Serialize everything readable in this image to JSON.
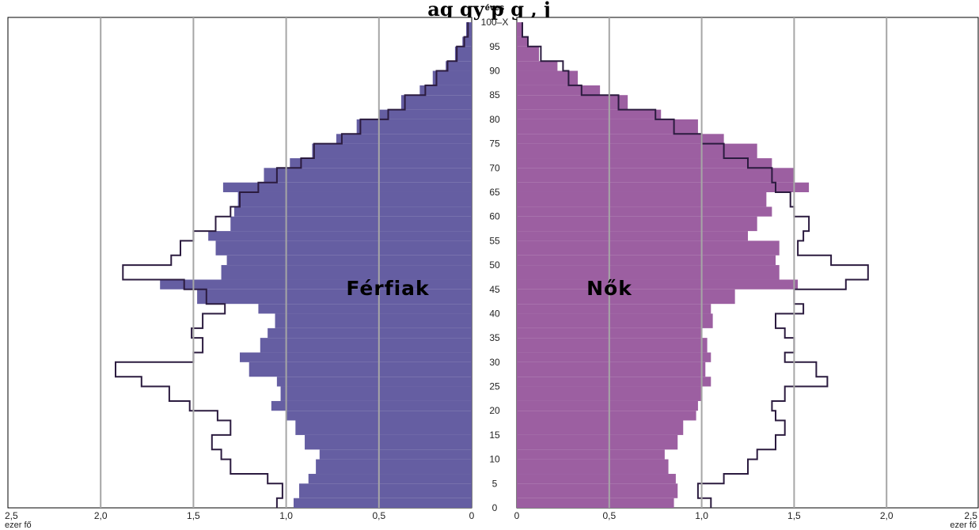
{
  "chart_data": {
    "type": "bar",
    "title": "ag gy p g , j",
    "age_axis_label": "éves",
    "age_ticks": [
      "0",
      "5",
      "10",
      "15",
      "20",
      "25",
      "30",
      "35",
      "40",
      "45",
      "50",
      "55",
      "60",
      "65",
      "70",
      "75",
      "80",
      "85",
      "90",
      "95",
      "100–X"
    ],
    "x_ticks_men": [
      "2,5",
      "2,0",
      "1,5",
      "1,0",
      "0,5",
      "0"
    ],
    "x_ticks_women": [
      "0",
      "0,5",
      "1,0",
      "1,5",
      "2,0",
      "2,5"
    ],
    "x_unit": "ezer fő",
    "xlim": [
      0,
      2.5
    ],
    "grid": true,
    "colors": {
      "men": "#655ea2",
      "women": "#9c5fa1",
      "outline": "#2b1b3f"
    },
    "series": [
      {
        "name": "Férfiak",
        "ages": [
          0,
          2,
          5,
          7,
          10,
          12,
          15,
          18,
          20,
          22,
          25,
          27,
          30,
          32,
          35,
          37,
          40,
          42,
          45,
          47,
          50,
          52,
          55,
          57,
          60,
          62,
          65,
          67,
          70,
          72,
          75,
          77,
          80,
          82,
          85,
          87,
          90,
          92,
          95,
          97,
          100
        ],
        "filled": [
          0.96,
          0.93,
          0.88,
          0.84,
          0.82,
          0.9,
          0.95,
          1.0,
          1.08,
          1.03,
          1.05,
          1.2,
          1.25,
          1.14,
          1.1,
          1.06,
          1.15,
          1.48,
          1.68,
          1.35,
          1.32,
          1.38,
          1.42,
          1.3,
          1.28,
          1.26,
          1.34,
          1.12,
          0.98,
          0.86,
          0.73,
          0.62,
          0.5,
          0.38,
          0.28,
          0.21,
          0.14,
          0.09,
          0.05,
          0.03,
          0.01
        ],
        "outline": [
          1.05,
          1.02,
          1.1,
          1.3,
          1.35,
          1.4,
          1.3,
          1.37,
          1.52,
          1.63,
          1.78,
          1.92,
          1.5,
          1.45,
          1.51,
          1.45,
          1.33,
          1.43,
          1.55,
          1.88,
          1.62,
          1.57,
          1.5,
          1.38,
          1.3,
          1.25,
          1.15,
          1.05,
          0.92,
          0.85,
          0.7,
          0.6,
          0.45,
          0.36,
          0.25,
          0.19,
          0.13,
          0.08,
          0.04,
          0.02,
          0.01
        ]
      },
      {
        "name": "Nők",
        "ages": [
          0,
          2,
          5,
          7,
          10,
          12,
          15,
          18,
          20,
          22,
          25,
          27,
          30,
          32,
          35,
          37,
          40,
          42,
          45,
          47,
          50,
          52,
          55,
          57,
          60,
          62,
          65,
          67,
          70,
          72,
          75,
          77,
          80,
          82,
          85,
          87,
          90,
          92,
          95,
          97,
          100
        ],
        "filled": [
          0.85,
          0.87,
          0.86,
          0.82,
          0.8,
          0.87,
          0.9,
          0.97,
          0.98,
          1.0,
          1.05,
          1.02,
          1.05,
          1.03,
          1.0,
          1.06,
          1.05,
          1.18,
          1.52,
          1.42,
          1.4,
          1.42,
          1.25,
          1.3,
          1.38,
          1.35,
          1.58,
          1.5,
          1.38,
          1.3,
          1.12,
          0.98,
          0.78,
          0.6,
          0.45,
          0.33,
          0.22,
          0.12,
          0.06,
          0.03,
          0.01
        ],
        "outline": [
          1.05,
          0.98,
          1.12,
          1.25,
          1.3,
          1.4,
          1.45,
          1.4,
          1.38,
          1.45,
          1.68,
          1.62,
          1.45,
          1.5,
          1.45,
          1.4,
          1.55,
          1.5,
          1.78,
          1.9,
          1.7,
          1.52,
          1.55,
          1.58,
          1.5,
          1.48,
          1.4,
          1.38,
          1.25,
          1.12,
          1.0,
          0.85,
          0.75,
          0.55,
          0.35,
          0.28,
          0.25,
          0.13,
          0.06,
          0.03,
          0.01
        ]
      }
    ]
  }
}
